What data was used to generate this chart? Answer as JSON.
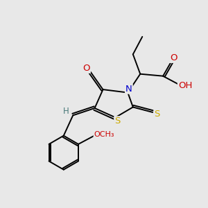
{
  "bg_color": "#e8e8e8",
  "atom_colors": {
    "C": "#000000",
    "N": "#0000cc",
    "O": "#cc0000",
    "S": "#ccaa00",
    "H": "#4a7a7a"
  },
  "figsize": [
    3.0,
    3.0
  ],
  "dpi": 100
}
